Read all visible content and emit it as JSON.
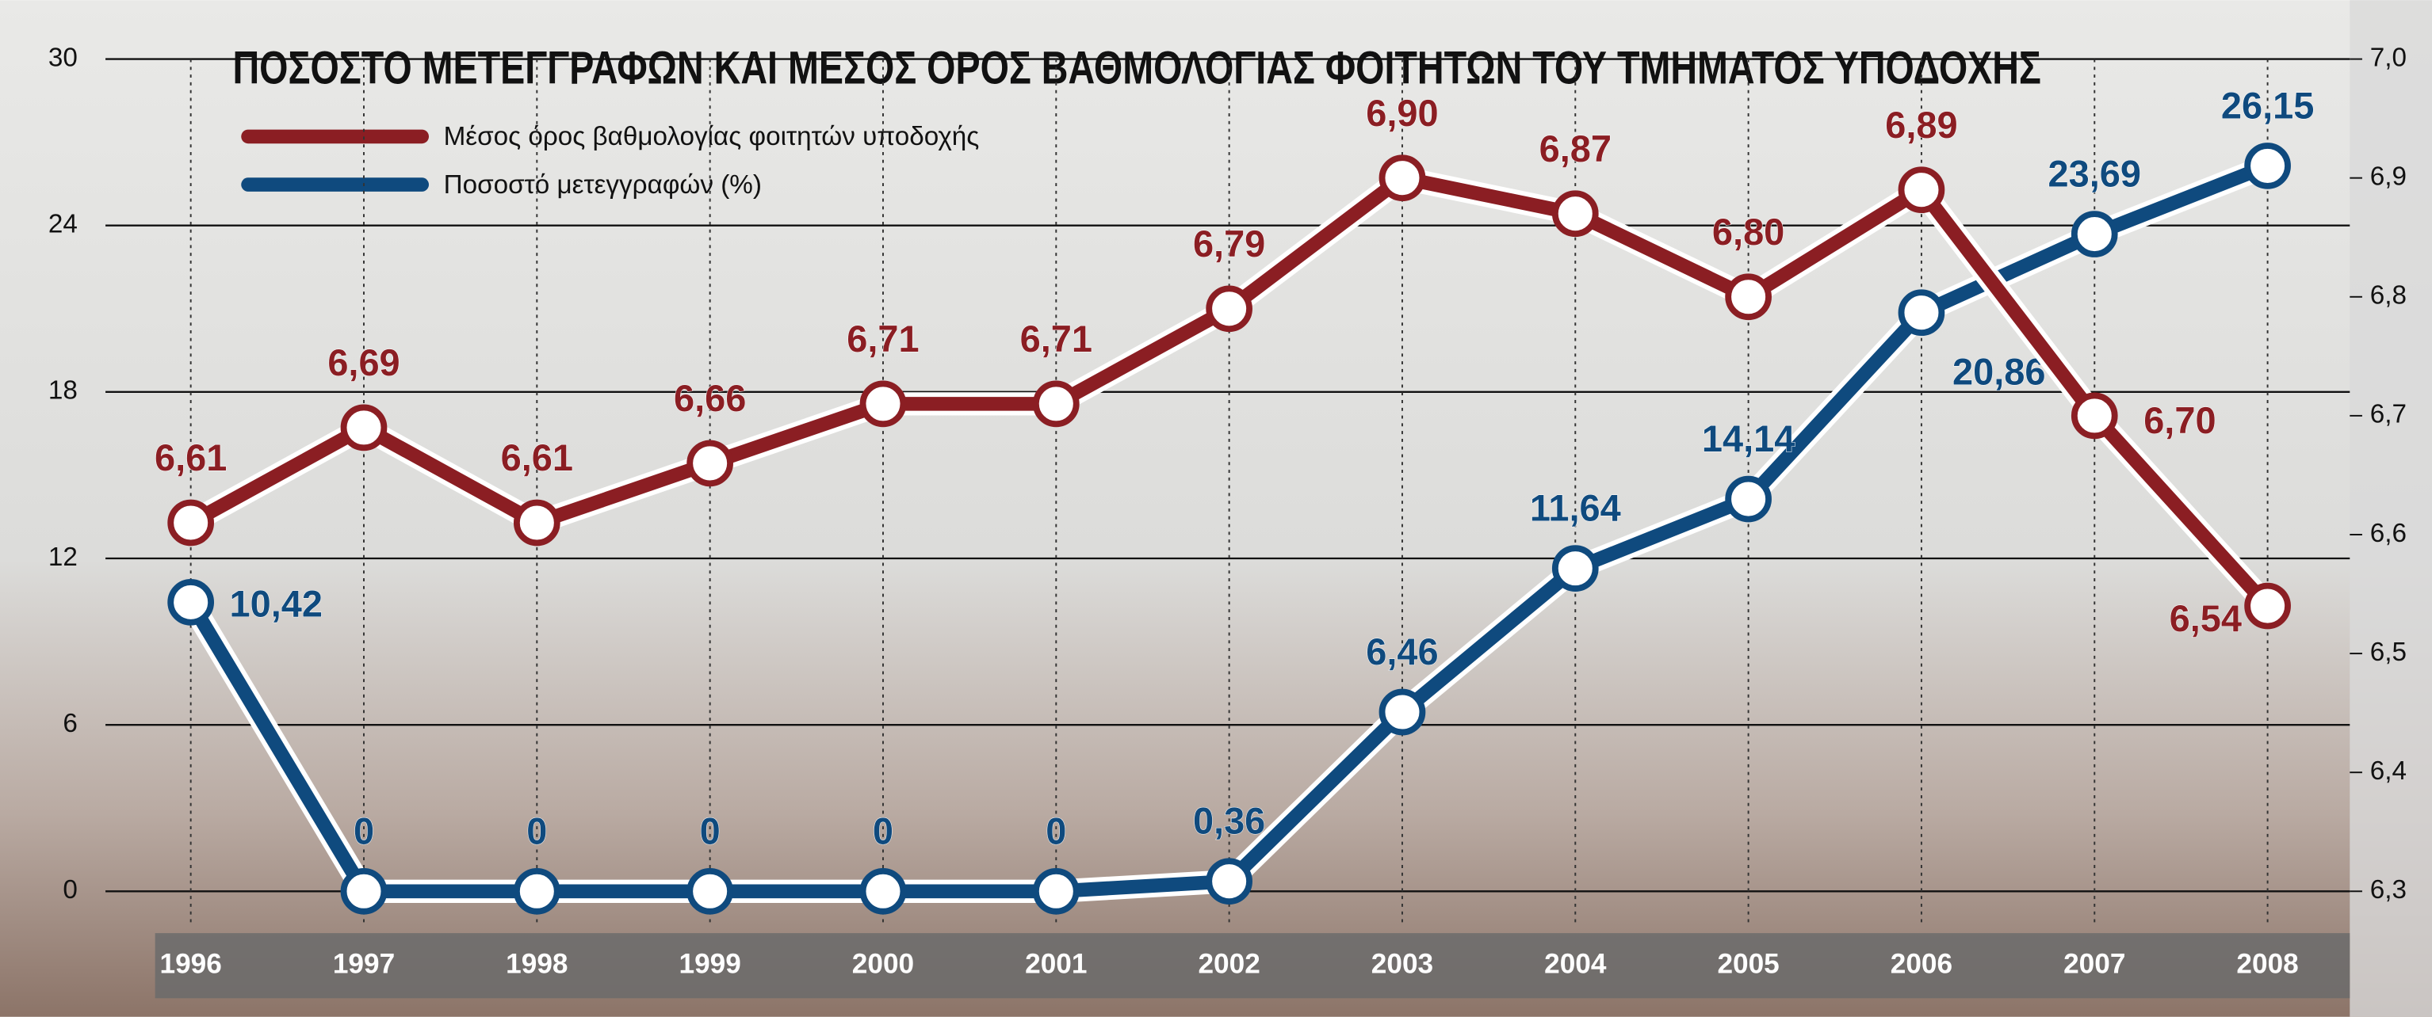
{
  "chart_data": {
    "type": "line",
    "title": "ΠΟΣΟΣΤΟ ΜΕΤΕΓΓΡΑΦΩΝ ΚΑΙ ΜΕΣΟΣ ΟΡΟΣ ΒΑΘΜΟΛΟΓΙΑΣ ΦΟΙΤΗΤΩΝ ΤΟΥ ΤΜΗΜΑΤΟΣ ΥΠΟΔΟΧΗΣ",
    "categories": [
      "1996",
      "1997",
      "1998",
      "1999",
      "2000",
      "2001",
      "2002",
      "2003",
      "2004",
      "2005",
      "2006",
      "2007",
      "2008"
    ],
    "series": [
      {
        "name": "Μέσος όρος βαθμολογίας φοιτητών υποδοχής",
        "color": "#8b1e23",
        "axis": "y2",
        "values": [
          6.61,
          6.69,
          6.61,
          6.66,
          6.71,
          6.71,
          6.79,
          6.9,
          6.87,
          6.8,
          6.89,
          6.7,
          6.54
        ],
        "value_labels": [
          "6,61",
          "6,69",
          "6,61",
          "6,66",
          "6,71",
          "6,71",
          "6,79",
          "6,90",
          "6,87",
          "6,80",
          "6,89",
          "6,70",
          "6,54"
        ]
      },
      {
        "name": "Ποσοστό μετεγγραφών (%)",
        "color": "#0f4a7e",
        "values": [
          10.42,
          0,
          0,
          0,
          0,
          0,
          0.36,
          6.46,
          11.64,
          14.14,
          20.86,
          23.69,
          26.15
        ],
        "value_labels": [
          "10,42",
          "0",
          "0",
          "0",
          "0",
          "0",
          "0,36",
          "6,46",
          "11,64",
          "14,14",
          "20,86",
          "23,69",
          "26,15"
        ]
      }
    ],
    "ylim": [
      0,
      30
    ],
    "yticks": [
      0,
      6,
      12,
      18,
      24,
      30
    ],
    "y2lim": [
      6.3,
      7.0
    ],
    "y2ticks": [
      {
        "value": 6.3,
        "label": "6,3"
      },
      {
        "value": 6.4,
        "label": "6,4"
      },
      {
        "value": 6.5,
        "label": "6,5"
      },
      {
        "value": 6.6,
        "label": "6,6"
      },
      {
        "value": 6.7,
        "label": "6,7"
      },
      {
        "value": 6.8,
        "label": "6,8"
      },
      {
        "value": 6.9,
        "label": "6,9"
      },
      {
        "value": 7.0,
        "label": "7,0"
      }
    ],
    "grid": true
  }
}
